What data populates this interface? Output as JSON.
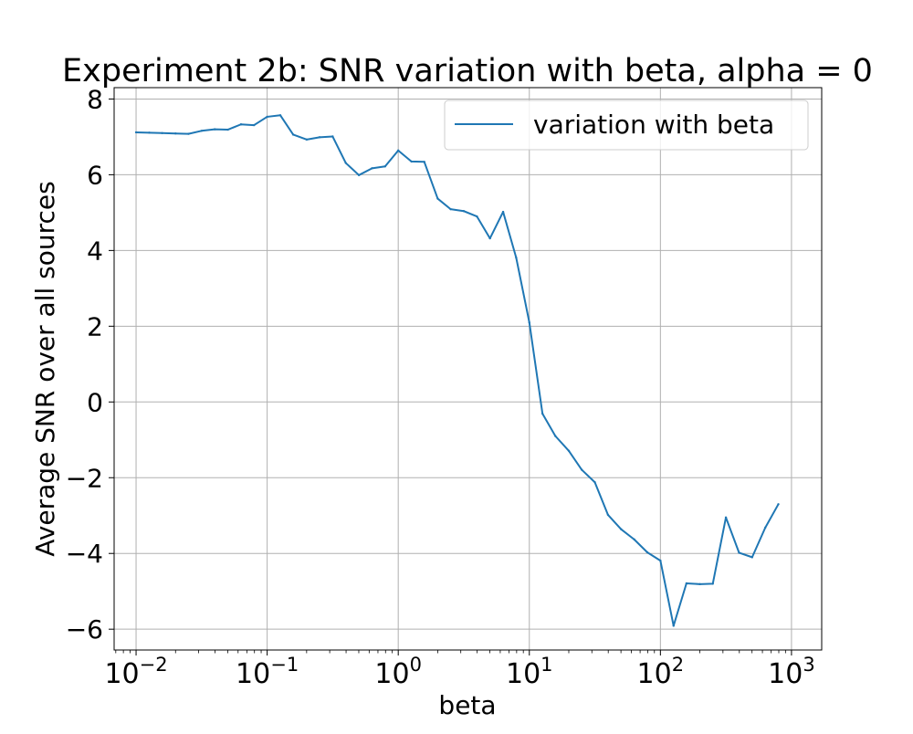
{
  "chart_data": {
    "type": "line",
    "title": "Experiment 2b: SNR variation with beta, alpha = 0",
    "xlabel": "beta",
    "ylabel": "Average SNR over all sources",
    "xscale": "log",
    "xlim": [
      0.0068,
      1700
    ],
    "ylim": [
      -6.55,
      8.3
    ],
    "grid": true,
    "legend": {
      "location": "upper right"
    },
    "x_ticks": [
      {
        "value": 0.01,
        "base": "10",
        "exp": "−2"
      },
      {
        "value": 0.1,
        "base": "10",
        "exp": "−1"
      },
      {
        "value": 1,
        "base": "10",
        "exp": "0"
      },
      {
        "value": 10,
        "base": "10",
        "exp": "1"
      },
      {
        "value": 100,
        "base": "10",
        "exp": "2"
      },
      {
        "value": 1000,
        "base": "10",
        "exp": "3"
      }
    ],
    "y_ticks": [
      {
        "value": 8,
        "label": "8"
      },
      {
        "value": 6,
        "label": "6"
      },
      {
        "value": 4,
        "label": "4"
      },
      {
        "value": 2,
        "label": "2"
      },
      {
        "value": 0,
        "label": "0"
      },
      {
        "value": -2,
        "label": "−2"
      },
      {
        "value": -4,
        "label": "−4"
      },
      {
        "value": -6,
        "label": "−6"
      }
    ],
    "series": [
      {
        "name": "variation with beta",
        "color": "#1f77b4",
        "points": [
          [
            0.01,
            7.12
          ],
          [
            0.0126,
            7.11
          ],
          [
            0.0158,
            7.1
          ],
          [
            0.02,
            7.09
          ],
          [
            0.0251,
            7.08
          ],
          [
            0.0316,
            7.16
          ],
          [
            0.0398,
            7.2
          ],
          [
            0.0501,
            7.19
          ],
          [
            0.0631,
            7.33
          ],
          [
            0.0794,
            7.31
          ],
          [
            0.1,
            7.53
          ],
          [
            0.126,
            7.57
          ],
          [
            0.158,
            7.06
          ],
          [
            0.2,
            6.93
          ],
          [
            0.251,
            6.99
          ],
          [
            0.316,
            7.01
          ],
          [
            0.398,
            6.31
          ],
          [
            0.501,
            5.99
          ],
          [
            0.631,
            6.17
          ],
          [
            0.794,
            6.22
          ],
          [
            1.0,
            6.64
          ],
          [
            1.26,
            6.35
          ],
          [
            1.58,
            6.34
          ],
          [
            2.0,
            5.37
          ],
          [
            2.51,
            5.09
          ],
          [
            3.16,
            5.04
          ],
          [
            3.98,
            4.9
          ],
          [
            5.01,
            4.32
          ],
          [
            6.31,
            5.02
          ],
          [
            7.94,
            3.81
          ],
          [
            10.0,
            2.1
          ],
          [
            12.6,
            -0.31
          ],
          [
            15.8,
            -0.9
          ],
          [
            20.0,
            -1.29
          ],
          [
            25.1,
            -1.79
          ],
          [
            31.6,
            -2.12
          ],
          [
            39.8,
            -2.98
          ],
          [
            50.1,
            -3.36
          ],
          [
            63.1,
            -3.63
          ],
          [
            79.4,
            -3.97
          ],
          [
            100,
            -4.19
          ],
          [
            126,
            -5.91
          ],
          [
            158,
            -4.79
          ],
          [
            200,
            -4.81
          ],
          [
            251,
            -4.8
          ],
          [
            316,
            -3.05
          ],
          [
            398,
            -3.98
          ],
          [
            501,
            -4.1
          ],
          [
            631,
            -3.32
          ],
          [
            794,
            -2.7
          ]
        ]
      }
    ]
  }
}
